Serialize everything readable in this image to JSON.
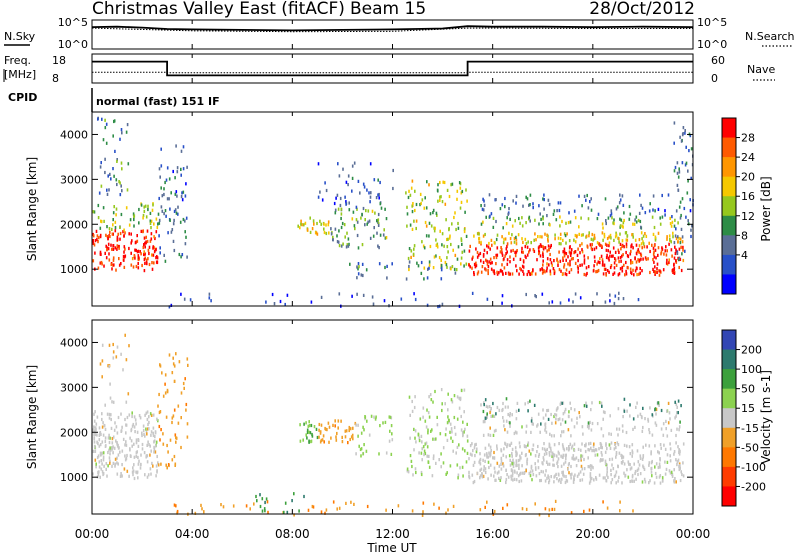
{
  "header": {
    "title": "Christmas Valley East (fitACF)",
    "beam": "Beam 15",
    "date": "28/Oct/2012"
  },
  "panels": {
    "noise": {
      "left_label": "N.Sky",
      "right_label": "N.Search",
      "left_ticks": [
        "10^5",
        "10^0"
      ],
      "right_ticks": [
        "10^5",
        "10^0"
      ]
    },
    "freq": {
      "left_label_1": "Freq.",
      "left_label_2": "[MHz]",
      "right_label": "Nave",
      "left_ticks": [
        "18",
        "8"
      ],
      "right_ticks": [
        "60",
        "0"
      ]
    },
    "cpid": {
      "label": "CPID",
      "value": "normal (fast) 151 IF"
    }
  },
  "axes": {
    "ylabel": "Slant Range [km]",
    "xlabel": "Time UT",
    "yticks": [
      "1000",
      "2000",
      "3000",
      "4000"
    ],
    "xticks": [
      "00:00",
      "04:00",
      "08:00",
      "12:00",
      "16:00",
      "20:00",
      "00:00"
    ]
  },
  "colorbars": {
    "power": {
      "label": "Power [dB]",
      "ticks": [
        "28",
        "24",
        "20",
        "16",
        "12",
        "8",
        "4"
      ],
      "colors": [
        "#ff0000",
        "#ff5a00",
        "#ff9600",
        "#f5c800",
        "#96c81e",
        "#2d8c46",
        "#5a6e96",
        "#2850c8",
        "#0000ff"
      ]
    },
    "velocity": {
      "label": "Velocity [m s-1]",
      "ticks": [
        "200",
        "100",
        "50",
        "15",
        "-15",
        "-50",
        "-100",
        "-200"
      ],
      "colors": [
        "#3246b4",
        "#2d7a6e",
        "#3ca03c",
        "#8cd250",
        "#c8c8c8",
        "#f0a028",
        "#ff7800",
        "#ff3c00",
        "#ff0000"
      ]
    }
  },
  "chart_data": [
    {
      "type": "line",
      "title": "Christmas Valley East (fitACF)",
      "x_unit": "hours UT",
      "xlim": [
        0,
        24
      ],
      "ylim_log10": [
        0,
        5
      ],
      "series": [
        {
          "name": "N.Sky",
          "x": [
            0,
            1,
            2,
            3,
            4,
            6,
            8,
            10,
            12,
            14,
            15,
            16,
            18,
            20,
            22,
            24
          ],
          "log10_values": [
            4.1,
            4.2,
            4.0,
            3.7,
            3.6,
            3.5,
            3.4,
            3.5,
            3.6,
            3.8,
            4.3,
            4.2,
            4.2,
            4.1,
            4.2,
            4.1
          ]
        },
        {
          "name": "N.Search",
          "x": [
            0,
            4,
            8,
            12,
            15,
            16,
            20,
            24
          ],
          "log10_values": [
            3.9,
            3.3,
            3.1,
            3.2,
            3.9,
            3.9,
            3.8,
            3.8
          ]
        }
      ]
    },
    {
      "type": "line",
      "x_unit": "hours UT",
      "xlim": [
        0,
        24
      ],
      "series": [
        {
          "name": "Freq. [MHz]",
          "x": [
            0,
            3,
            3,
            15,
            15,
            24
          ],
          "y": [
            16,
            16,
            10,
            10,
            16,
            16
          ],
          "ylim": [
            8,
            18
          ]
        },
        {
          "name": "Nave",
          "x": [
            0,
            3,
            3,
            15,
            15,
            24
          ],
          "y": [
            20,
            20,
            19,
            19,
            20,
            20
          ],
          "ylim": [
            0,
            60
          ]
        }
      ]
    },
    {
      "type": "heatmap",
      "ylabel": "Slant Range [km]",
      "xlabel": "Time UT",
      "xlim": [
        0,
        24
      ],
      "ylim": [
        180,
        4500
      ],
      "colorbar": "Power [dB]",
      "clim": [
        0,
        30
      ],
      "regions": [
        {
          "t0": 0.0,
          "t1": 2.6,
          "r0": 1000,
          "r1": 1900,
          "value": 28,
          "density": 0.9
        },
        {
          "t0": 0.0,
          "t1": 2.6,
          "r0": 1900,
          "r1": 2500,
          "value": 14,
          "density": 0.45
        },
        {
          "t0": 0.2,
          "t1": 1.5,
          "r0": 2500,
          "r1": 4400,
          "value": 10,
          "density": 0.22
        },
        {
          "t0": 2.6,
          "t1": 3.8,
          "r0": 1200,
          "r1": 3800,
          "value": 8,
          "density": 0.3
        },
        {
          "t0": 8.2,
          "t1": 9.5,
          "r0": 1800,
          "r1": 2200,
          "value": 18,
          "density": 0.75
        },
        {
          "t0": 9.5,
          "t1": 11.8,
          "r0": 1500,
          "r1": 2400,
          "value": 12,
          "density": 0.45
        },
        {
          "t0": 9.0,
          "t1": 12.0,
          "r0": 2400,
          "r1": 3400,
          "value": 6,
          "density": 0.2
        },
        {
          "t0": 10.0,
          "t1": 14.5,
          "r0": 800,
          "r1": 1200,
          "value": 9,
          "density": 0.25
        },
        {
          "t0": 12.5,
          "t1": 15.0,
          "r0": 1000,
          "r1": 3000,
          "value": 16,
          "density": 0.35
        },
        {
          "t0": 15.0,
          "t1": 23.6,
          "r0": 900,
          "r1": 1600,
          "value": 28,
          "density": 0.95
        },
        {
          "t0": 15.0,
          "t1": 23.6,
          "r0": 1600,
          "r1": 1850,
          "value": 18,
          "density": 0.8
        },
        {
          "t0": 15.5,
          "t1": 23.5,
          "r0": 1950,
          "r1": 2200,
          "value": 14,
          "density": 0.5
        },
        {
          "t0": 15.5,
          "t1": 23.5,
          "r0": 2200,
          "r1": 2700,
          "value": 8,
          "density": 0.28
        },
        {
          "t0": 23.2,
          "t1": 24.0,
          "r0": 1200,
          "r1": 4300,
          "value": 8,
          "density": 0.3
        },
        {
          "t0": 3.0,
          "t1": 22.0,
          "r0": 180,
          "r1": 500,
          "value": 5,
          "density": 0.12
        }
      ]
    },
    {
      "type": "heatmap",
      "ylabel": "Slant Range [km]",
      "xlabel": "Time UT",
      "xlim": [
        0,
        24
      ],
      "ylim": [
        180,
        4500
      ],
      "colorbar": "Velocity [m s-1]",
      "clim": [
        -250,
        250
      ],
      "regions": [
        {
          "t0": 0.0,
          "t1": 2.6,
          "r0": 1000,
          "r1": 2500,
          "value": 0,
          "density": 0.85
        },
        {
          "t0": 2.6,
          "t1": 3.8,
          "r0": 1200,
          "r1": 3800,
          "value": -60,
          "density": 0.25
        },
        {
          "t0": 0.3,
          "t1": 1.5,
          "r0": 2600,
          "r1": 4300,
          "value": -40,
          "density": 0.15
        },
        {
          "t0": 8.2,
          "t1": 9.0,
          "r0": 1800,
          "r1": 2300,
          "value": 80,
          "density": 0.75
        },
        {
          "t0": 9.0,
          "t1": 10.5,
          "r0": 1800,
          "r1": 2300,
          "value": -60,
          "density": 0.7
        },
        {
          "t0": 10.5,
          "t1": 12.0,
          "r0": 1500,
          "r1": 2400,
          "value": 40,
          "density": 0.35
        },
        {
          "t0": 12.5,
          "t1": 15.0,
          "r0": 1000,
          "r1": 3000,
          "value": 30,
          "density": 0.35
        },
        {
          "t0": 15.0,
          "t1": 23.6,
          "r0": 900,
          "r1": 1800,
          "value": 0,
          "density": 0.9
        },
        {
          "t0": 15.5,
          "t1": 23.5,
          "r0": 1950,
          "r1": 2700,
          "value": 0,
          "density": 0.4
        },
        {
          "t0": 15.5,
          "t1": 23.5,
          "r0": 2200,
          "r1": 2800,
          "value": 150,
          "density": 0.1
        },
        {
          "t0": 3.0,
          "t1": 22.0,
          "r0": 180,
          "r1": 500,
          "value": -80,
          "density": 0.14
        },
        {
          "t0": 6.5,
          "t1": 8.5,
          "r0": 180,
          "r1": 700,
          "value": 120,
          "density": 0.2
        }
      ]
    }
  ]
}
